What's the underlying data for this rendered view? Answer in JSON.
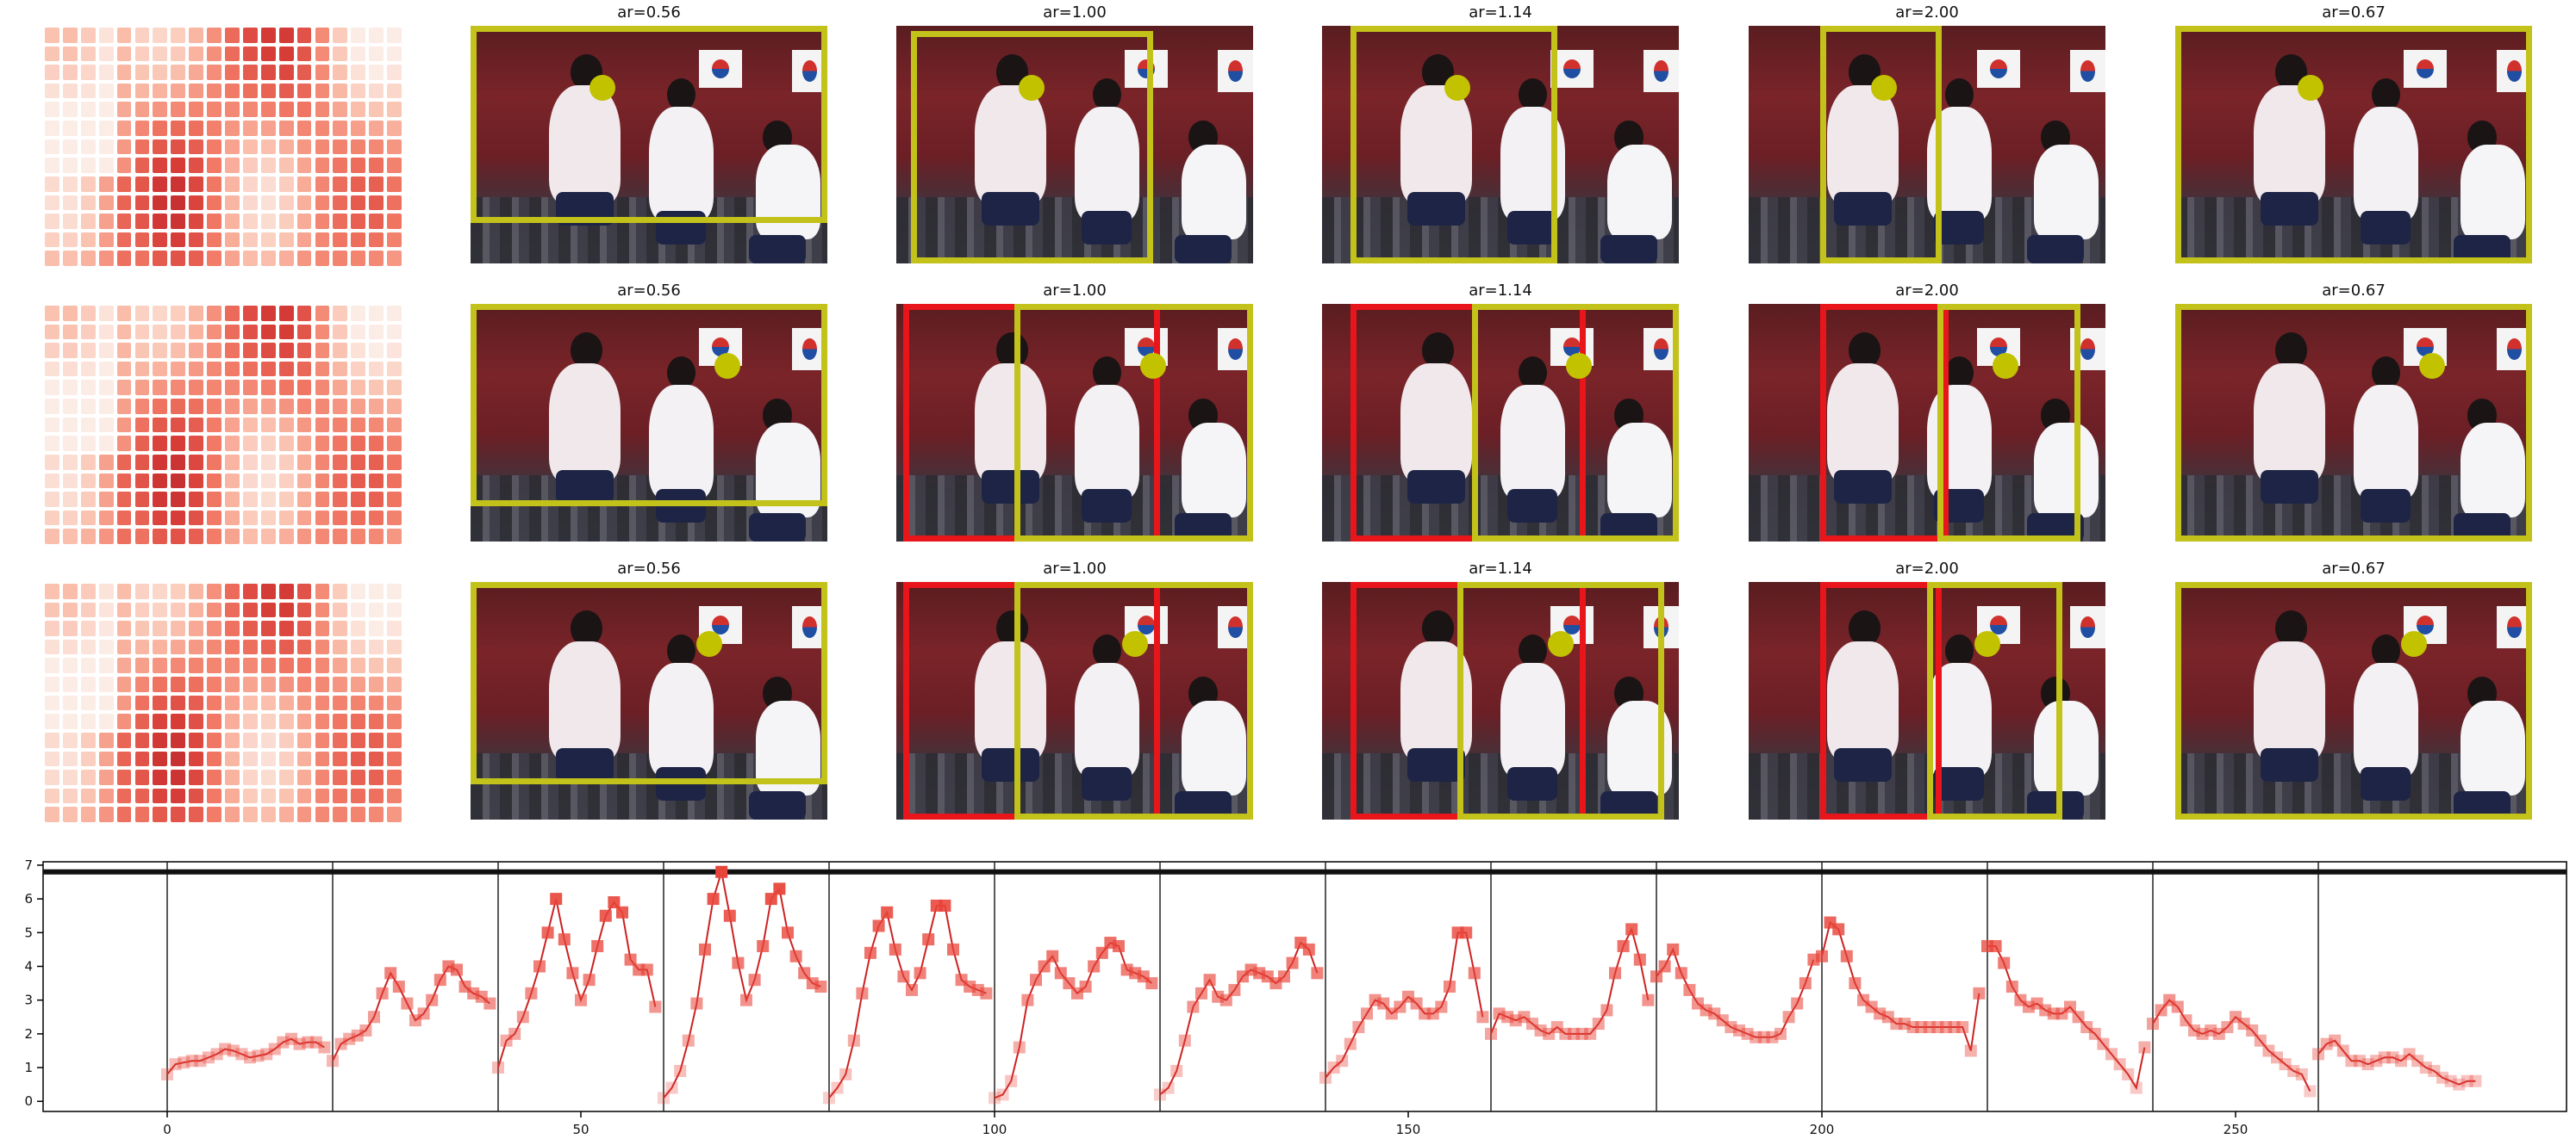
{
  "colors": {
    "yellow_box": "#c2c21a",
    "red_box": "#e8151b",
    "ball": "#c2c200",
    "line": "#cc2222",
    "marker": "#e8453a"
  },
  "rows": [
    {
      "panels": [
        {
          "title": "ar=0.56"
        },
        {
          "title": "ar=1.00"
        },
        {
          "title": "ar=1.14"
        },
        {
          "title": "ar=2.00"
        },
        {
          "title": "ar=0.67"
        }
      ]
    },
    {
      "panels": [
        {
          "title": "ar=0.56"
        },
        {
          "title": "ar=1.00"
        },
        {
          "title": "ar=1.14"
        },
        {
          "title": "ar=2.00"
        },
        {
          "title": "ar=0.67"
        }
      ]
    },
    {
      "panels": [
        {
          "title": "ar=0.56"
        },
        {
          "title": "ar=1.00"
        },
        {
          "title": "ar=1.14"
        },
        {
          "title": "ar=2.00"
        },
        {
          "title": "ar=0.67"
        }
      ]
    }
  ],
  "chart_data": {
    "type": "line",
    "title": "",
    "xlabel": "",
    "ylabel": "",
    "xlim": [
      -15,
      290
    ],
    "ylim": [
      -0.3,
      7.1
    ],
    "x_ticks": [
      0,
      50,
      100,
      150,
      200,
      250
    ],
    "y_ticks": [
      0,
      1,
      2,
      3,
      4,
      5,
      6,
      7
    ],
    "vertical_lines": [
      0,
      20,
      40,
      60,
      80,
      100,
      120,
      140,
      160,
      180,
      200,
      220,
      240,
      260
    ],
    "horizontal_line": 6.8,
    "grid": false,
    "series": [
      {
        "x": [
          0,
          1,
          2,
          3,
          4,
          5,
          6,
          7,
          8,
          9,
          10,
          11,
          12,
          13,
          14,
          15,
          16,
          17,
          18,
          19,
          20,
          21,
          22,
          23,
          24,
          25,
          26,
          27,
          28,
          29,
          30,
          31,
          32,
          33,
          34,
          35,
          36,
          37,
          38,
          39,
          40,
          41,
          42,
          43,
          44,
          45,
          46,
          47,
          48,
          49,
          50,
          51,
          52,
          53,
          54,
          55,
          56,
          57,
          58,
          59,
          60,
          61,
          62,
          63,
          64,
          65,
          66,
          67,
          68,
          69,
          70,
          71,
          72,
          73,
          74,
          75,
          76,
          77,
          78,
          79,
          80,
          81,
          82,
          83,
          84,
          85,
          86,
          87,
          88,
          89,
          90,
          91,
          92,
          93,
          94,
          95,
          96,
          97,
          98,
          99,
          100,
          101,
          102,
          103,
          104,
          105,
          106,
          107,
          108,
          109,
          110,
          111,
          112,
          113,
          114,
          115,
          116,
          117,
          118,
          119,
          120,
          121,
          122,
          123,
          124,
          125,
          126,
          127,
          128,
          129,
          130,
          131,
          132,
          133,
          134,
          135,
          136,
          137,
          138,
          139,
          140,
          141,
          142,
          143,
          144,
          145,
          146,
          147,
          148,
          149,
          150,
          151,
          152,
          153,
          154,
          155,
          156,
          157,
          158,
          159,
          160,
          161,
          162,
          163,
          164,
          165,
          166,
          167,
          168,
          169,
          170,
          171,
          172,
          173,
          174,
          175,
          176,
          177,
          178,
          179,
          180,
          181,
          182,
          183,
          184,
          185,
          186,
          187,
          188,
          189,
          190,
          191,
          192,
          193,
          194,
          195,
          196,
          197,
          198,
          199,
          200,
          201,
          202,
          203,
          204,
          205,
          206,
          207,
          208,
          209,
          210,
          211,
          212,
          213,
          214,
          215,
          216,
          217,
          218,
          219,
          220,
          221,
          222,
          223,
          224,
          225,
          226,
          227,
          228,
          229,
          230,
          231,
          232,
          233,
          234,
          235,
          236,
          237,
          238,
          239,
          240,
          241,
          242,
          243,
          244,
          245,
          246,
          247,
          248,
          249,
          250,
          251,
          252,
          253,
          254,
          255,
          256,
          257,
          258,
          259,
          260,
          261,
          262,
          263,
          264,
          265,
          266,
          267,
          268,
          269,
          270,
          271,
          272,
          273,
          274,
          275,
          276,
          277,
          278,
          279
        ],
        "y": [
          0.8,
          1.1,
          1.15,
          1.2,
          1.2,
          1.3,
          1.4,
          1.55,
          1.5,
          1.4,
          1.3,
          1.35,
          1.4,
          1.55,
          1.75,
          1.85,
          1.7,
          1.75,
          1.75,
          1.6,
          1.2,
          1.7,
          1.85,
          1.95,
          2.1,
          2.5,
          3.2,
          3.8,
          3.4,
          2.9,
          2.4,
          2.6,
          3.0,
          3.6,
          4.0,
          3.9,
          3.4,
          3.2,
          3.1,
          2.9,
          1.0,
          1.8,
          2.0,
          2.5,
          3.2,
          4.0,
          5.0,
          6.0,
          4.8,
          3.8,
          3.0,
          3.6,
          4.6,
          5.5,
          5.9,
          5.6,
          4.2,
          3.9,
          3.9,
          2.8,
          0.1,
          0.4,
          0.9,
          1.8,
          2.9,
          4.5,
          6.0,
          6.8,
          5.5,
          4.1,
          3.0,
          3.6,
          4.6,
          6.0,
          6.3,
          5.0,
          4.3,
          3.8,
          3.5,
          3.4,
          0.1,
          0.4,
          0.8,
          1.8,
          3.2,
          4.4,
          5.2,
          5.6,
          4.5,
          3.7,
          3.3,
          3.8,
          4.8,
          5.8,
          5.8,
          4.5,
          3.6,
          3.4,
          3.3,
          3.2,
          0.1,
          0.2,
          0.6,
          1.6,
          3.0,
          3.6,
          4.0,
          4.3,
          3.8,
          3.5,
          3.2,
          3.4,
          4.0,
          4.4,
          4.7,
          4.6,
          3.9,
          3.8,
          3.7,
          3.5,
          0.2,
          0.4,
          0.9,
          1.8,
          2.8,
          3.2,
          3.6,
          3.1,
          3.0,
          3.3,
          3.7,
          3.9,
          3.8,
          3.7,
          3.5,
          3.7,
          4.1,
          4.7,
          4.5,
          3.8,
          0.7,
          1.0,
          1.2,
          1.7,
          2.2,
          2.6,
          3.0,
          2.9,
          2.6,
          2.8,
          3.1,
          2.9,
          2.6,
          2.6,
          2.8,
          3.4,
          5.0,
          5.0,
          3.8,
          2.5,
          2.0,
          2.6,
          2.5,
          2.4,
          2.5,
          2.3,
          2.1,
          2.0,
          2.2,
          2.0,
          2.0,
          2.0,
          2.0,
          2.3,
          2.7,
          3.8,
          4.6,
          5.1,
          4.2,
          3.0,
          3.7,
          4.0,
          4.5,
          3.8,
          3.3,
          2.9,
          2.7,
          2.6,
          2.4,
          2.2,
          2.1,
          2.0,
          1.9,
          1.9,
          1.9,
          2.0,
          2.5,
          2.9,
          3.5,
          4.2,
          4.3,
          5.3,
          5.1,
          4.3,
          3.5,
          3.0,
          2.8,
          2.6,
          2.5,
          2.3,
          2.3,
          2.2,
          2.2,
          2.2,
          2.2,
          2.2,
          2.2,
          2.2,
          1.5,
          3.2,
          4.6,
          4.6,
          4.1,
          3.4,
          3.0,
          2.8,
          2.9,
          2.7,
          2.6,
          2.6,
          2.8,
          2.5,
          2.2,
          2.0,
          1.7,
          1.4,
          1.1,
          0.8,
          0.4,
          1.6,
          2.3,
          2.7,
          3.0,
          2.8,
          2.4,
          2.1,
          2.0,
          2.1,
          2.0,
          2.2,
          2.5,
          2.3,
          2.1,
          1.8,
          1.5,
          1.3,
          1.1,
          0.9,
          0.8,
          0.3,
          1.4,
          1.7,
          1.8,
          1.5,
          1.2,
          1.2,
          1.1,
          1.2,
          1.3,
          1.3,
          1.2,
          1.4,
          1.2,
          1.0,
          0.9,
          0.7,
          0.6,
          0.5,
          0.6,
          0.6
        ]
      }
    ]
  }
}
